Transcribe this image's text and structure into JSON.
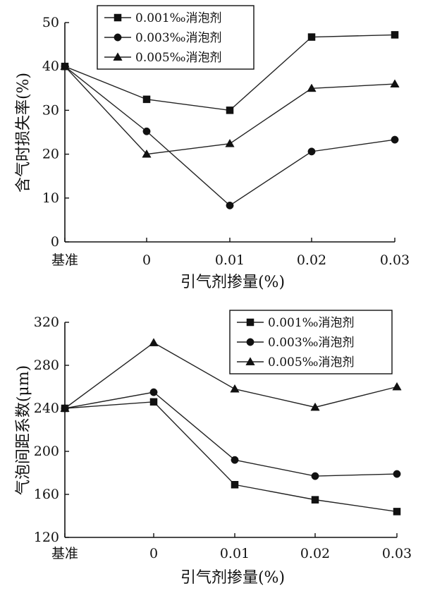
{
  "chart_data": [
    {
      "type": "line",
      "categories": [
        "基准",
        "0",
        "0.01",
        "0.02",
        "0.03"
      ],
      "xlabel": "引气剂掺量(%)",
      "ylabel": "含气时损失率(%)",
      "ylim": [
        0,
        50
      ],
      "yticks": [
        "0",
        "10",
        "20",
        "30",
        "40",
        "50"
      ],
      "grid": false,
      "legend_position": "top-center",
      "series": [
        {
          "name": "0.001‰消泡剂",
          "marker": "square",
          "values": [
            40,
            32.5,
            30,
            46.7,
            47.2
          ]
        },
        {
          "name": "0.003‰消泡剂",
          "marker": "circle",
          "values": [
            40,
            25.2,
            8.3,
            20.6,
            23.3
          ]
        },
        {
          "name": "0.005‰消泡剂",
          "marker": "triangle",
          "values": [
            40,
            20,
            22.4,
            35,
            36
          ]
        }
      ]
    },
    {
      "type": "line",
      "categories": [
        "基准",
        "0",
        "0.01",
        "0.02",
        "0.03"
      ],
      "xlabel": "引气剂掺量(%)",
      "ylabel": "气泡间距系数(μm)",
      "ylim": [
        120,
        320
      ],
      "yticks": [
        "120",
        "160",
        "200",
        "240",
        "280",
        "320"
      ],
      "grid": false,
      "legend_position": "top-right",
      "series": [
        {
          "name": "0.001‰消泡剂",
          "marker": "square",
          "values": [
            240,
            246,
            169,
            155,
            144
          ]
        },
        {
          "name": "0.003‰消泡剂",
          "marker": "circle",
          "values": [
            240,
            255,
            192,
            177,
            179
          ]
        },
        {
          "name": "0.005‰消泡剂",
          "marker": "triangle",
          "values": [
            240,
            301,
            258,
            241,
            260
          ]
        }
      ]
    }
  ]
}
